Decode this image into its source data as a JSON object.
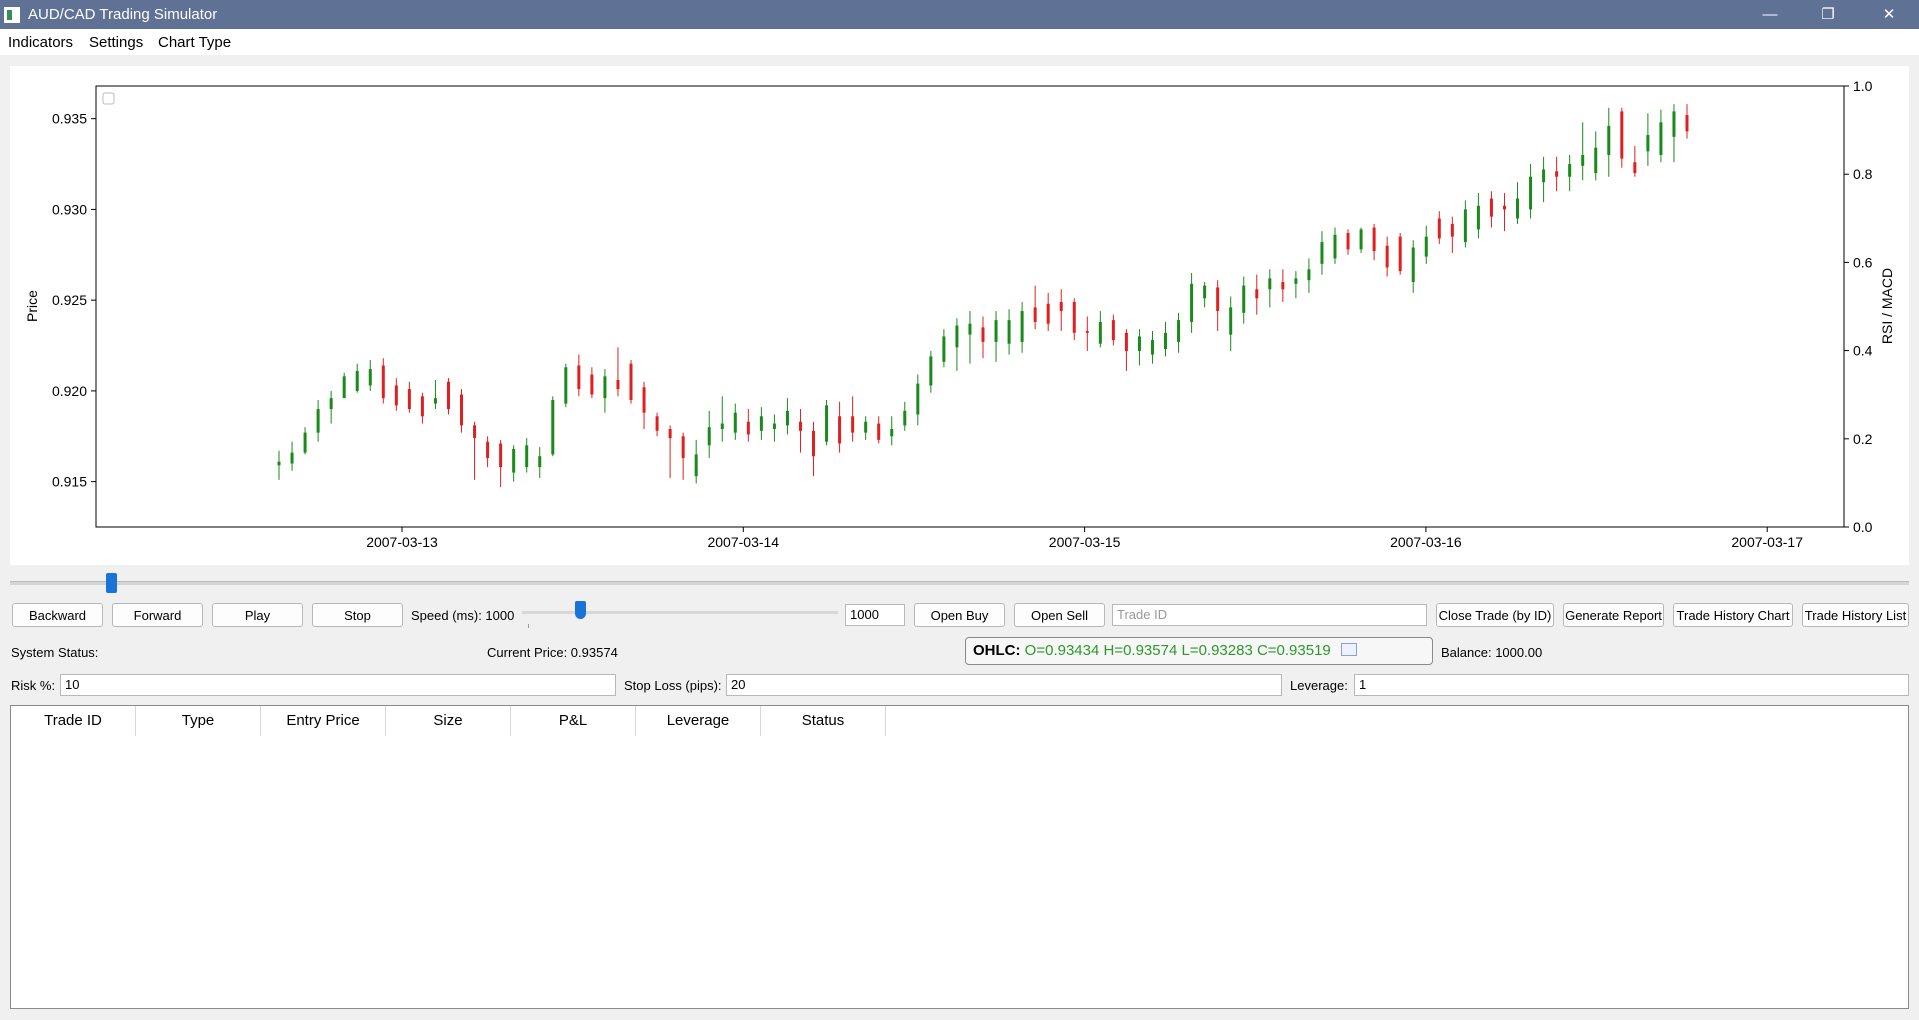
{
  "window": {
    "title": "AUD/CAD Trading Simulator",
    "controls": [
      "minimize-icon",
      "restore-icon",
      "close-icon"
    ]
  },
  "menu": [
    "Indicators",
    "Settings",
    "Chart Type"
  ],
  "chart_data": {
    "type": "candlestick",
    "ylabel": "Price",
    "y2label": "RSI / MACD",
    "ylim": [
      0.9125,
      0.9368
    ],
    "yticks": [
      "0.915",
      "0.920",
      "0.925",
      "0.930",
      "0.935"
    ],
    "y2lim": [
      0.0,
      1.0
    ],
    "y2ticks": [
      "0.0",
      "0.2",
      "0.4",
      "0.6",
      "0.8",
      "1.0"
    ],
    "xticks": [
      "2007-03-13",
      "2007-03-14",
      "2007-03-15",
      "2007-03-16",
      "2007-03-17"
    ],
    "up_color": "#1a8a1a",
    "down_color": "#e02020",
    "candles": [
      {
        "o": 0.9159,
        "h": 0.9167,
        "l": 0.9151,
        "c": 0.9161
      },
      {
        "o": 0.916,
        "h": 0.9172,
        "l": 0.9156,
        "c": 0.9166
      },
      {
        "o": 0.9166,
        "h": 0.918,
        "l": 0.9165,
        "c": 0.9177
      },
      {
        "o": 0.9177,
        "h": 0.9195,
        "l": 0.9172,
        "c": 0.919
      },
      {
        "o": 0.919,
        "h": 0.92,
        "l": 0.9182,
        "c": 0.9196
      },
      {
        "o": 0.9196,
        "h": 0.921,
        "l": 0.9196,
        "c": 0.9208
      },
      {
        "o": 0.92,
        "h": 0.9215,
        "l": 0.9199,
        "c": 0.9211
      },
      {
        "o": 0.9203,
        "h": 0.9217,
        "l": 0.92,
        "c": 0.9212
      },
      {
        "o": 0.9214,
        "h": 0.9218,
        "l": 0.9193,
        "c": 0.9196
      },
      {
        "o": 0.9203,
        "h": 0.9207,
        "l": 0.9189,
        "c": 0.9192
      },
      {
        "o": 0.9201,
        "h": 0.9205,
        "l": 0.9188,
        "c": 0.919
      },
      {
        "o": 0.9197,
        "h": 0.9199,
        "l": 0.9182,
        "c": 0.9186
      },
      {
        "o": 0.9193,
        "h": 0.9206,
        "l": 0.919,
        "c": 0.9196
      },
      {
        "o": 0.9205,
        "h": 0.9207,
        "l": 0.9187,
        "c": 0.919
      },
      {
        "o": 0.9198,
        "h": 0.9201,
        "l": 0.9177,
        "c": 0.9181
      },
      {
        "o": 0.9181,
        "h": 0.9183,
        "l": 0.9151,
        "c": 0.9174
      },
      {
        "o": 0.9172,
        "h": 0.9175,
        "l": 0.9158,
        "c": 0.9163
      },
      {
        "o": 0.9171,
        "h": 0.9173,
        "l": 0.9147,
        "c": 0.9158
      },
      {
        "o": 0.9155,
        "h": 0.917,
        "l": 0.915,
        "c": 0.9168
      },
      {
        "o": 0.9158,
        "h": 0.9174,
        "l": 0.9155,
        "c": 0.917
      },
      {
        "o": 0.9158,
        "h": 0.9169,
        "l": 0.9152,
        "c": 0.9164
      },
      {
        "o": 0.9165,
        "h": 0.9197,
        "l": 0.9164,
        "c": 0.9195
      },
      {
        "o": 0.9193,
        "h": 0.9215,
        "l": 0.9191,
        "c": 0.9213
      },
      {
        "o": 0.9214,
        "h": 0.922,
        "l": 0.9197,
        "c": 0.9201
      },
      {
        "o": 0.9209,
        "h": 0.9213,
        "l": 0.9196,
        "c": 0.9198
      },
      {
        "o": 0.9196,
        "h": 0.9212,
        "l": 0.9188,
        "c": 0.9208
      },
      {
        "o": 0.9206,
        "h": 0.9224,
        "l": 0.9197,
        "c": 0.9201
      },
      {
        "o": 0.9215,
        "h": 0.9217,
        "l": 0.9193,
        "c": 0.9195
      },
      {
        "o": 0.9202,
        "h": 0.9205,
        "l": 0.9179,
        "c": 0.9188
      },
      {
        "o": 0.9186,
        "h": 0.9188,
        "l": 0.9175,
        "c": 0.9178
      },
      {
        "o": 0.9179,
        "h": 0.9181,
        "l": 0.9152,
        "c": 0.9174
      },
      {
        "o": 0.9175,
        "h": 0.9177,
        "l": 0.9151,
        "c": 0.9163
      },
      {
        "o": 0.9153,
        "h": 0.9173,
        "l": 0.9149,
        "c": 0.9165
      },
      {
        "o": 0.917,
        "h": 0.9189,
        "l": 0.9163,
        "c": 0.918
      },
      {
        "o": 0.9179,
        "h": 0.9197,
        "l": 0.9172,
        "c": 0.9182
      },
      {
        "o": 0.9177,
        "h": 0.9193,
        "l": 0.9173,
        "c": 0.9188
      },
      {
        "o": 0.9183,
        "h": 0.919,
        "l": 0.9172,
        "c": 0.9176
      },
      {
        "o": 0.9178,
        "h": 0.9191,
        "l": 0.9173,
        "c": 0.9186
      },
      {
        "o": 0.9179,
        "h": 0.9187,
        "l": 0.9172,
        "c": 0.9182
      },
      {
        "o": 0.9181,
        "h": 0.9196,
        "l": 0.9176,
        "c": 0.9189
      },
      {
        "o": 0.9183,
        "h": 0.919,
        "l": 0.9166,
        "c": 0.9178
      },
      {
        "o": 0.9178,
        "h": 0.9183,
        "l": 0.9153,
        "c": 0.9164
      },
      {
        "o": 0.9172,
        "h": 0.9195,
        "l": 0.917,
        "c": 0.9192
      },
      {
        "o": 0.9186,
        "h": 0.9194,
        "l": 0.9166,
        "c": 0.9171
      },
      {
        "o": 0.9186,
        "h": 0.9197,
        "l": 0.9172,
        "c": 0.9177
      },
      {
        "o": 0.9177,
        "h": 0.9186,
        "l": 0.9173,
        "c": 0.9183
      },
      {
        "o": 0.9182,
        "h": 0.9186,
        "l": 0.9171,
        "c": 0.9173
      },
      {
        "o": 0.9175,
        "h": 0.9186,
        "l": 0.917,
        "c": 0.9179
      },
      {
        "o": 0.9181,
        "h": 0.9194,
        "l": 0.9178,
        "c": 0.9189
      },
      {
        "o": 0.9187,
        "h": 0.9209,
        "l": 0.9181,
        "c": 0.9204
      },
      {
        "o": 0.9203,
        "h": 0.9222,
        "l": 0.9199,
        "c": 0.9219
      },
      {
        "o": 0.9216,
        "h": 0.9234,
        "l": 0.9213,
        "c": 0.923
      },
      {
        "o": 0.9224,
        "h": 0.924,
        "l": 0.9211,
        "c": 0.9236
      },
      {
        "o": 0.9231,
        "h": 0.9244,
        "l": 0.9215,
        "c": 0.9237
      },
      {
        "o": 0.9235,
        "h": 0.9241,
        "l": 0.9218,
        "c": 0.9227
      },
      {
        "o": 0.9227,
        "h": 0.9244,
        "l": 0.9216,
        "c": 0.9239
      },
      {
        "o": 0.9226,
        "h": 0.9245,
        "l": 0.922,
        "c": 0.9239
      },
      {
        "o": 0.9227,
        "h": 0.9249,
        "l": 0.9221,
        "c": 0.9244
      },
      {
        "o": 0.9246,
        "h": 0.9258,
        "l": 0.9234,
        "c": 0.9238
      },
      {
        "o": 0.9248,
        "h": 0.9254,
        "l": 0.9233,
        "c": 0.9237
      },
      {
        "o": 0.9249,
        "h": 0.9256,
        "l": 0.9233,
        "c": 0.9244
      },
      {
        "o": 0.9249,
        "h": 0.9251,
        "l": 0.9228,
        "c": 0.9232
      },
      {
        "o": 0.9233,
        "h": 0.9241,
        "l": 0.9222,
        "c": 0.9232
      },
      {
        "o": 0.9226,
        "h": 0.9244,
        "l": 0.9224,
        "c": 0.9238
      },
      {
        "o": 0.9239,
        "h": 0.9242,
        "l": 0.9225,
        "c": 0.9228
      },
      {
        "o": 0.9232,
        "h": 0.9234,
        "l": 0.9211,
        "c": 0.9222
      },
      {
        "o": 0.9222,
        "h": 0.9234,
        "l": 0.9214,
        "c": 0.923
      },
      {
        "o": 0.922,
        "h": 0.9233,
        "l": 0.9215,
        "c": 0.9228
      },
      {
        "o": 0.9223,
        "h": 0.9238,
        "l": 0.9219,
        "c": 0.9232
      },
      {
        "o": 0.9227,
        "h": 0.9243,
        "l": 0.9221,
        "c": 0.9239
      },
      {
        "o": 0.9238,
        "h": 0.9265,
        "l": 0.9232,
        "c": 0.9259
      },
      {
        "o": 0.9251,
        "h": 0.926,
        "l": 0.9246,
        "c": 0.9258
      },
      {
        "o": 0.9257,
        "h": 0.9261,
        "l": 0.9233,
        "c": 0.9244
      },
      {
        "o": 0.9231,
        "h": 0.9252,
        "l": 0.9222,
        "c": 0.9246
      },
      {
        "o": 0.9243,
        "h": 0.9263,
        "l": 0.9237,
        "c": 0.9258
      },
      {
        "o": 0.9256,
        "h": 0.9264,
        "l": 0.9242,
        "c": 0.9251
      },
      {
        "o": 0.9256,
        "h": 0.9267,
        "l": 0.9246,
        "c": 0.9262
      },
      {
        "o": 0.926,
        "h": 0.9267,
        "l": 0.9249,
        "c": 0.9256
      },
      {
        "o": 0.9259,
        "h": 0.9266,
        "l": 0.9251,
        "c": 0.9262
      },
      {
        "o": 0.9261,
        "h": 0.9273,
        "l": 0.9254,
        "c": 0.9267
      },
      {
        "o": 0.927,
        "h": 0.9288,
        "l": 0.9264,
        "c": 0.9282
      },
      {
        "o": 0.9273,
        "h": 0.929,
        "l": 0.927,
        "c": 0.9286
      },
      {
        "o": 0.9287,
        "h": 0.9289,
        "l": 0.9275,
        "c": 0.9278
      },
      {
        "o": 0.9278,
        "h": 0.929,
        "l": 0.9276,
        "c": 0.9289
      },
      {
        "o": 0.929,
        "h": 0.9292,
        "l": 0.9272,
        "c": 0.9277
      },
      {
        "o": 0.928,
        "h": 0.9285,
        "l": 0.9263,
        "c": 0.9268
      },
      {
        "o": 0.9285,
        "h": 0.9287,
        "l": 0.9264,
        "c": 0.9266
      },
      {
        "o": 0.926,
        "h": 0.9283,
        "l": 0.9254,
        "c": 0.9279
      },
      {
        "o": 0.9274,
        "h": 0.9291,
        "l": 0.927,
        "c": 0.9285
      },
      {
        "o": 0.9295,
        "h": 0.9299,
        "l": 0.9281,
        "c": 0.9284
      },
      {
        "o": 0.9292,
        "h": 0.9296,
        "l": 0.9276,
        "c": 0.9285
      },
      {
        "o": 0.9282,
        "h": 0.9305,
        "l": 0.9279,
        "c": 0.93
      },
      {
        "o": 0.9289,
        "h": 0.9309,
        "l": 0.9284,
        "c": 0.9302
      },
      {
        "o": 0.9306,
        "h": 0.931,
        "l": 0.929,
        "c": 0.9296
      },
      {
        "o": 0.9302,
        "h": 0.9309,
        "l": 0.9288,
        "c": 0.93
      },
      {
        "o": 0.9295,
        "h": 0.9315,
        "l": 0.9292,
        "c": 0.9306
      },
      {
        "o": 0.93,
        "h": 0.9325,
        "l": 0.9295,
        "c": 0.9318
      },
      {
        "o": 0.9315,
        "h": 0.9329,
        "l": 0.9304,
        "c": 0.9322
      },
      {
        "o": 0.9321,
        "h": 0.9329,
        "l": 0.931,
        "c": 0.9318
      },
      {
        "o": 0.9318,
        "h": 0.933,
        "l": 0.931,
        "c": 0.9325
      },
      {
        "o": 0.9324,
        "h": 0.9348,
        "l": 0.9316,
        "c": 0.933
      },
      {
        "o": 0.932,
        "h": 0.9343,
        "l": 0.9316,
        "c": 0.9334
      },
      {
        "o": 0.933,
        "h": 0.9356,
        "l": 0.9318,
        "c": 0.9346
      },
      {
        "o": 0.9354,
        "h": 0.9356,
        "l": 0.9323,
        "c": 0.9328
      },
      {
        "o": 0.9326,
        "h": 0.9335,
        "l": 0.9318,
        "c": 0.932
      },
      {
        "o": 0.9332,
        "h": 0.9353,
        "l": 0.9324,
        "c": 0.9341
      },
      {
        "o": 0.933,
        "h": 0.9355,
        "l": 0.9326,
        "c": 0.9348
      },
      {
        "o": 0.934,
        "h": 0.9358,
        "l": 0.9326,
        "c": 0.9354
      },
      {
        "o": 0.9352,
        "h": 0.9358,
        "l": 0.9339,
        "c": 0.9343
      }
    ]
  },
  "controls": {
    "backward": "Backward",
    "forward": "Forward",
    "play": "Play",
    "stop": "Stop",
    "speed_label": "Speed (ms): 1000",
    "speed_value": "1000",
    "open_buy": "Open Buy",
    "open_sell": "Open Sell",
    "trade_id_placeholder": "Trade ID",
    "close_trade": "Close Trade (by ID)",
    "generate_report": "Generate Report",
    "history_chart": "Trade History Chart",
    "history_list": "Trade History List"
  },
  "status": {
    "system_status": "System Status:",
    "current_price": "Current Price: 0.93574",
    "ohlc_label": "OHLC:",
    "ohlc_values": "O=0.93434 H=0.93574 L=0.93283 C=0.93519",
    "balance": "Balance: 1000.00"
  },
  "params": {
    "risk_label": "Risk %:",
    "risk_value": "10",
    "stop_loss_label": "Stop Loss (pips):",
    "stop_loss_value": "20",
    "leverage_label": "Leverage:",
    "leverage_value": "1"
  },
  "table": {
    "columns": [
      "Trade ID",
      "Type",
      "Entry Price",
      "Size",
      "P&L",
      "Leverage",
      "Status"
    ],
    "rows": []
  }
}
